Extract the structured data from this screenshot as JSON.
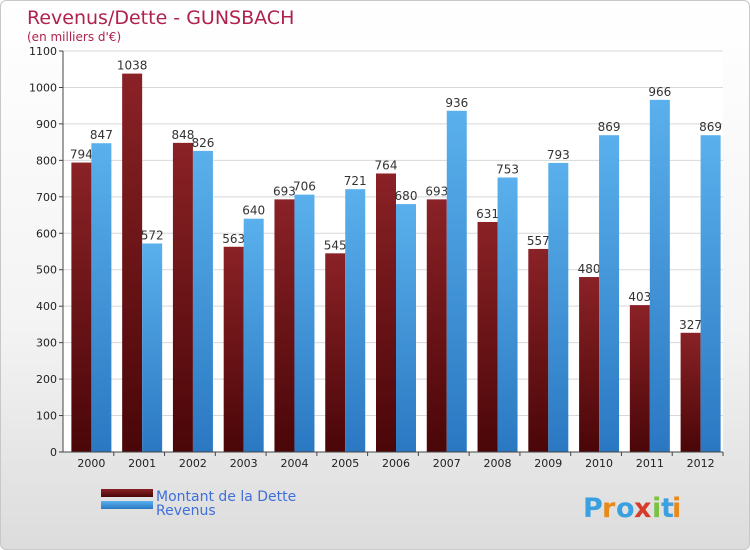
{
  "chart_data": {
    "type": "bar",
    "title": "Revenus/Dette - GUNSBACH",
    "subtitle": "(en milliers d'€)",
    "categories": [
      "2000",
      "2001",
      "2002",
      "2003",
      "2004",
      "2005",
      "2006",
      "2007",
      "2008",
      "2009",
      "2010",
      "2011",
      "2012"
    ],
    "series": [
      {
        "name": "Montant de la Dette",
        "color": "#7a1519",
        "values": [
          794,
          1038,
          848,
          563,
          693,
          545,
          764,
          693,
          631,
          557,
          480,
          403,
          327
        ]
      },
      {
        "name": "Revenus",
        "color": "#4ea6e6",
        "values": [
          847,
          572,
          826,
          640,
          706,
          721,
          680,
          936,
          753,
          793,
          869,
          966,
          869
        ]
      }
    ],
    "ylim": [
      0,
      1100
    ],
    "yticks": [
      0,
      100,
      200,
      300,
      400,
      500,
      600,
      700,
      800,
      900,
      1000,
      1100
    ],
    "grid": true,
    "legend": "bottom-left"
  },
  "brand": {
    "logo_letters": [
      "P",
      "r",
      "o",
      "x",
      "i",
      "t",
      "i"
    ],
    "logo_colors": [
      "#3aa0e0",
      "#e88a1a",
      "#3aa0e0",
      "#d63a2a",
      "#7cc242",
      "#3aa0e0",
      "#e88a1a"
    ]
  }
}
